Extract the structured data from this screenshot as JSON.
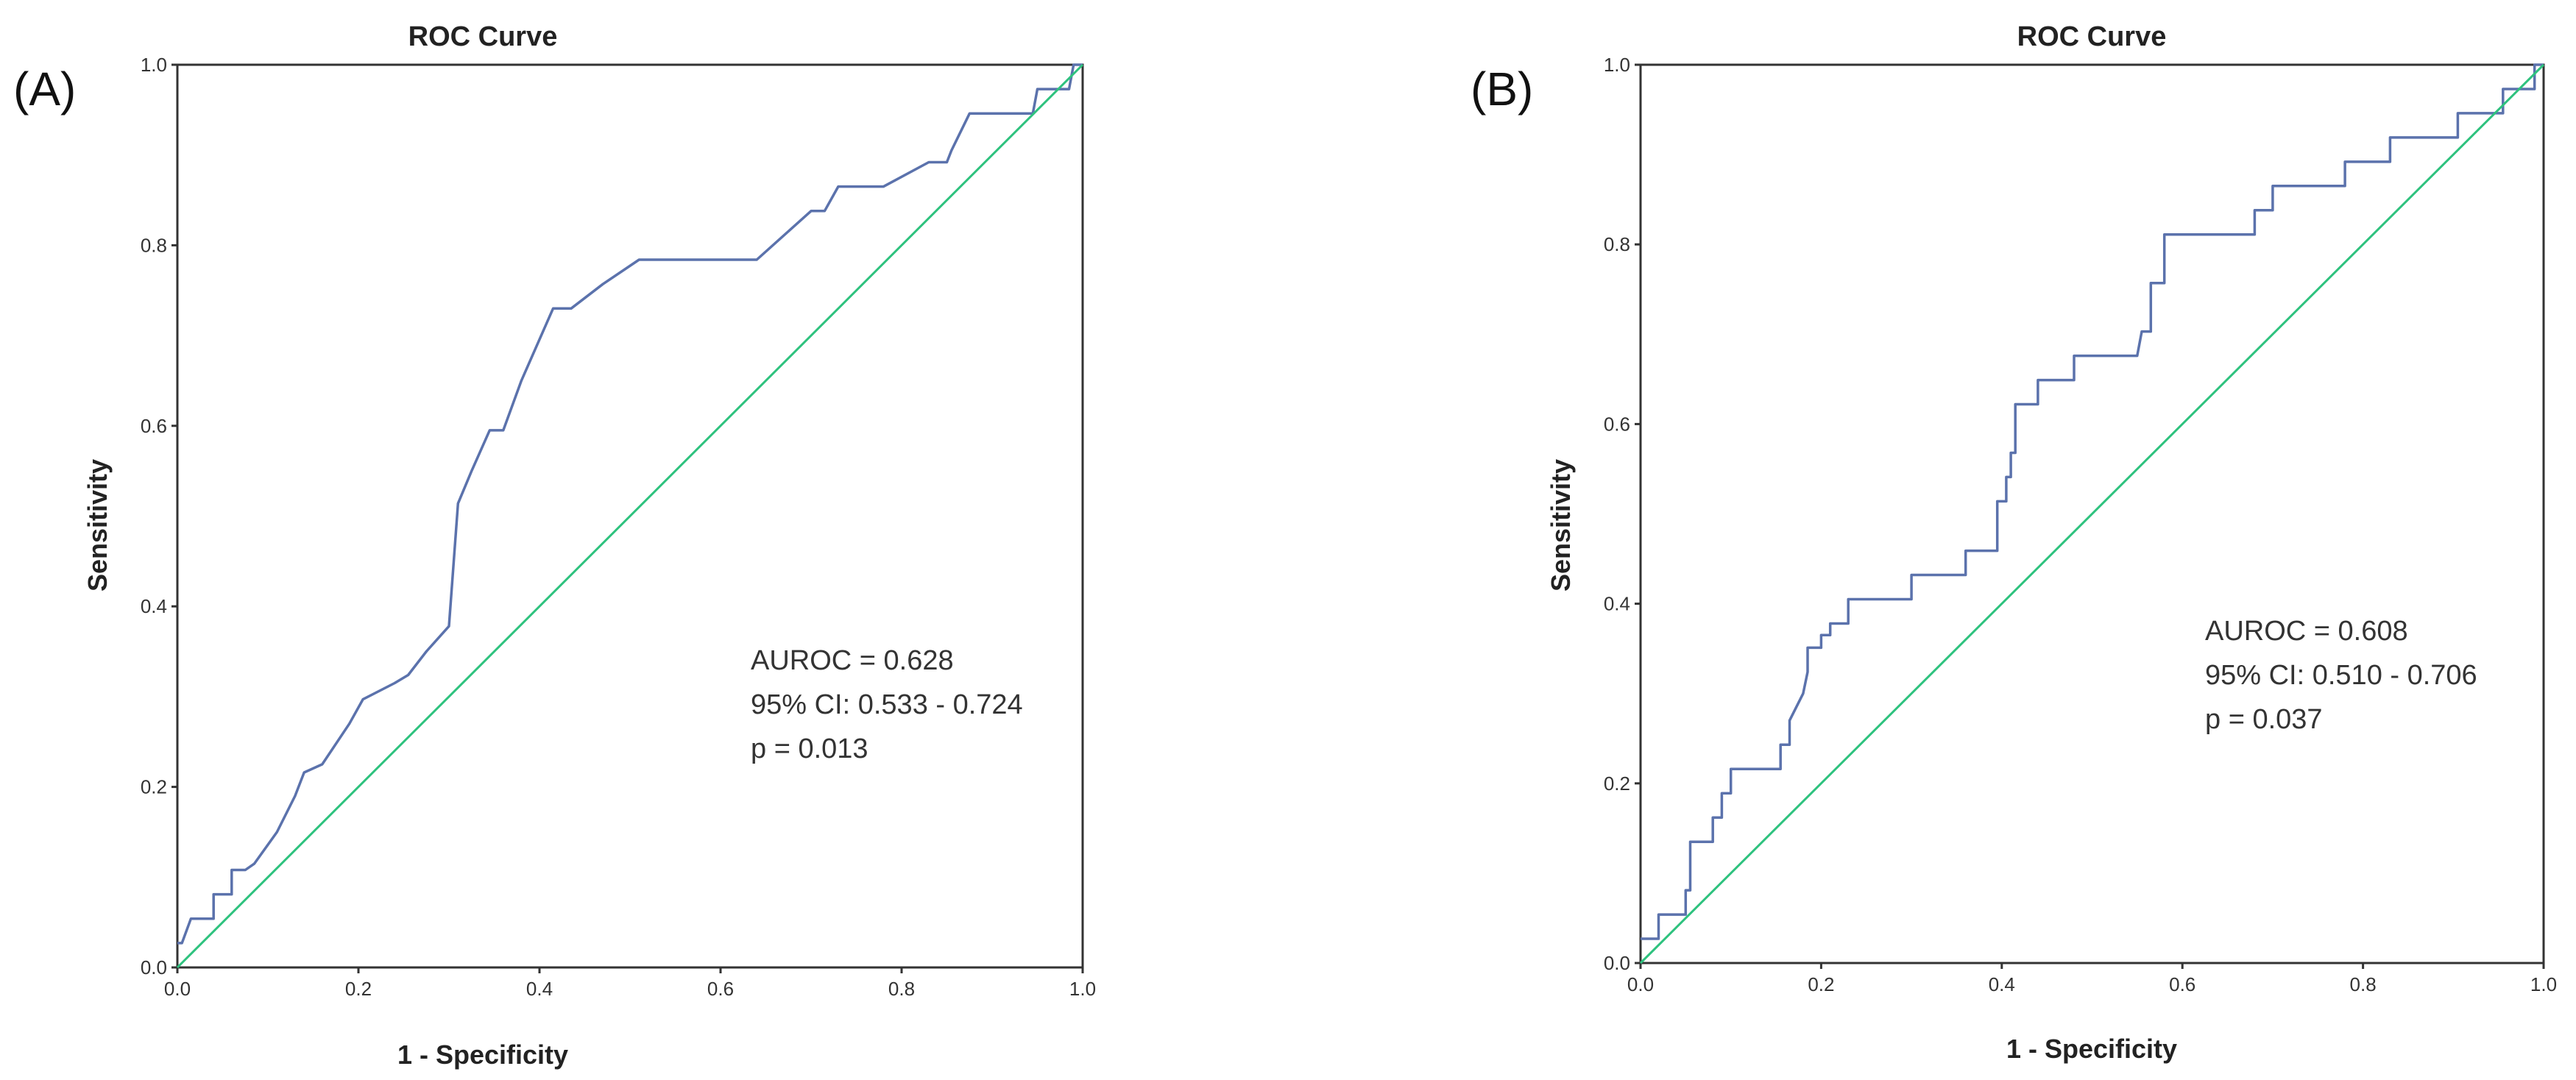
{
  "colors": {
    "roc": "#5b72ac",
    "reference": "#2ec27e",
    "frame": "#333333"
  },
  "chart_data": [
    {
      "type": "line",
      "panel_label": "(A)",
      "title": "ROC Curve",
      "xlabel": "1 - Specificity",
      "ylabel": "Sensitivity",
      "xlim": [
        0,
        1
      ],
      "ylim": [
        0,
        1
      ],
      "xticks": [
        "0.0",
        "0.2",
        "0.4",
        "0.6",
        "0.8",
        "1.0"
      ],
      "yticks": [
        "0.0",
        "0.2",
        "0.4",
        "0.6",
        "0.8",
        "1.0"
      ],
      "grid": false,
      "annotations": [
        "AUROC = 0.628",
        "95% CI: 0.533 - 0.724",
        "p = 0.013"
      ],
      "series": [
        {
          "name": "ROC curve",
          "x": [
            0,
            0.005,
            0.015,
            0.015,
            0.04,
            0.04,
            0.06,
            0.06,
            0.075,
            0.085,
            0.11,
            0.13,
            0.14,
            0.16,
            0.19,
            0.205,
            0.24,
            0.255,
            0.275,
            0.3,
            0.31,
            0.325,
            0.345,
            0.36,
            0.38,
            0.415,
            0.435,
            0.47,
            0.51,
            0.64,
            0.7,
            0.715,
            0.73,
            0.78,
            0.83,
            0.85,
            0.855,
            0.875,
            0.945,
            0.95,
            0.985,
            0.99,
            1
          ],
          "y": [
            0.027,
            0.027,
            0.054,
            0.054,
            0.054,
            0.081,
            0.081,
            0.108,
            0.108,
            0.115,
            0.15,
            0.19,
            0.216,
            0.225,
            0.27,
            0.297,
            0.315,
            0.324,
            0.35,
            0.378,
            0.514,
            0.55,
            0.595,
            0.595,
            0.65,
            0.73,
            0.73,
            0.757,
            0.784,
            0.784,
            0.838,
            0.838,
            0.865,
            0.865,
            0.892,
            0.892,
            0.905,
            0.946,
            0.946,
            0.973,
            0.973,
            1.0,
            1.0
          ],
          "color": "#5b72ac"
        },
        {
          "name": "Reference line",
          "x": [
            0,
            1
          ],
          "y": [
            0,
            1
          ],
          "color": "#2ec27e"
        }
      ]
    },
    {
      "type": "line",
      "panel_label": "(B)",
      "title": "ROC Curve",
      "xlabel": "1 - Specificity",
      "ylabel": "Sensitivity",
      "xlim": [
        0,
        1
      ],
      "ylim": [
        0,
        1
      ],
      "xticks": [
        "0.0",
        "0.2",
        "0.4",
        "0.6",
        "0.8",
        "1.0"
      ],
      "yticks": [
        "0.0",
        "0.2",
        "0.4",
        "0.6",
        "0.8",
        "1.0"
      ],
      "grid": false,
      "annotations": [
        "AUROC = 0.608",
        "95% CI: 0.510 - 0.706",
        "p = 0.037"
      ],
      "series": [
        {
          "name": "ROC curve",
          "x": [
            0,
            0.02,
            0.02,
            0.045,
            0.045,
            0.05,
            0.05,
            0.055,
            0.055,
            0.08,
            0.08,
            0.09,
            0.09,
            0.1,
            0.1,
            0.155,
            0.155,
            0.165,
            0.165,
            0.18,
            0.185,
            0.185,
            0.195,
            0.2,
            0.2,
            0.21,
            0.21,
            0.23,
            0.23,
            0.3,
            0.3,
            0.36,
            0.36,
            0.395,
            0.395,
            0.405,
            0.405,
            0.41,
            0.41,
            0.415,
            0.415,
            0.44,
            0.44,
            0.455,
            0.455,
            0.48,
            0.48,
            0.55,
            0.555,
            0.565,
            0.565,
            0.58,
            0.58,
            0.63,
            0.63,
            0.68,
            0.68,
            0.69,
            0.69,
            0.7,
            0.7,
            0.78,
            0.78,
            0.83,
            0.83,
            0.905,
            0.905,
            0.95,
            0.95,
            0.955,
            0.955,
            0.965,
            0.965,
            0.99,
            0.99,
            1
          ],
          "y": [
            0.027,
            0.027,
            0.054,
            0.054,
            0.054,
            0.054,
            0.081,
            0.081,
            0.135,
            0.135,
            0.162,
            0.162,
            0.189,
            0.189,
            0.216,
            0.216,
            0.243,
            0.243,
            0.27,
            0.3,
            0.324,
            0.351,
            0.351,
            0.351,
            0.365,
            0.365,
            0.378,
            0.378,
            0.405,
            0.405,
            0.432,
            0.432,
            0.459,
            0.459,
            0.514,
            0.514,
            0.541,
            0.541,
            0.568,
            0.568,
            0.622,
            0.622,
            0.649,
            0.649,
            0.649,
            0.649,
            0.676,
            0.676,
            0.703,
            0.703,
            0.757,
            0.757,
            0.811,
            0.811,
            0.811,
            0.811,
            0.838,
            0.838,
            0.838,
            0.838,
            0.865,
            0.865,
            0.892,
            0.892,
            0.919,
            0.919,
            0.946,
            0.946,
            0.946,
            0.946,
            0.973,
            0.973,
            0.973,
            0.973,
            1.0,
            1.0
          ],
          "color": "#5b72ac"
        },
        {
          "name": "Reference line",
          "x": [
            0,
            1
          ],
          "y": [
            0,
            1
          ],
          "color": "#2ec27e"
        }
      ]
    }
  ]
}
